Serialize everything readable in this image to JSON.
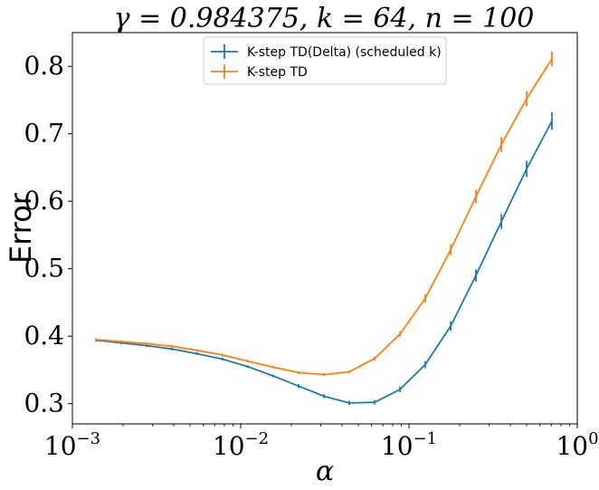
{
  "chart_data": {
    "type": "line",
    "title": "γ = 0.984375, k = 64, n = 100",
    "xlabel": "α",
    "ylabel": "Error",
    "xscale": "log",
    "xlim": [
      0.001,
      1
    ],
    "ylim": [
      0.27,
      0.85
    ],
    "x_ticks": [
      0.001,
      0.01,
      0.1,
      1
    ],
    "x_tick_labels": [
      {
        "base": "10",
        "exp": "−3"
      },
      {
        "base": "10",
        "exp": "−2"
      },
      {
        "base": "10",
        "exp": "−1"
      },
      {
        "base": "10",
        "exp": "0"
      }
    ],
    "y_ticks": [
      0.3,
      0.4,
      0.5,
      0.6,
      0.7,
      0.8
    ],
    "y_tick_labels": [
      "0.3",
      "0.4",
      "0.5",
      "0.6",
      "0.7",
      "0.8"
    ],
    "legend_position": "top-center",
    "x": [
      0.00138,
      0.00195,
      0.00276,
      0.0039,
      0.0055,
      0.0078,
      0.011,
      0.0156,
      0.0221,
      0.0313,
      0.0442,
      0.0625,
      0.0884,
      0.125,
      0.177,
      0.25,
      0.354,
      0.5,
      0.707
    ],
    "series": [
      {
        "name": "K-step TD(Delta) (scheduled k)",
        "color": "#1f77b4",
        "values": [
          0.394,
          0.39,
          0.386,
          0.381,
          0.374,
          0.366,
          0.355,
          0.341,
          0.326,
          0.311,
          0.301,
          0.302,
          0.321,
          0.358,
          0.415,
          0.49,
          0.57,
          0.648,
          0.719
        ],
        "errors": [
          0.002,
          0.002,
          0.002,
          0.002,
          0.002,
          0.002,
          0.002,
          0.002,
          0.003,
          0.003,
          0.003,
          0.003,
          0.004,
          0.005,
          0.007,
          0.009,
          0.011,
          0.012,
          0.013
        ]
      },
      {
        "name": "K-step TD",
        "color": "#ff7f0e",
        "values": [
          0.395,
          0.392,
          0.389,
          0.385,
          0.379,
          0.372,
          0.363,
          0.354,
          0.346,
          0.343,
          0.347,
          0.367,
          0.403,
          0.456,
          0.528,
          0.607,
          0.684,
          0.752,
          0.811
        ],
        "errors": [
          0.002,
          0.002,
          0.002,
          0.002,
          0.002,
          0.002,
          0.002,
          0.002,
          0.002,
          0.002,
          0.002,
          0.003,
          0.004,
          0.006,
          0.008,
          0.01,
          0.011,
          0.011,
          0.011
        ]
      }
    ]
  }
}
